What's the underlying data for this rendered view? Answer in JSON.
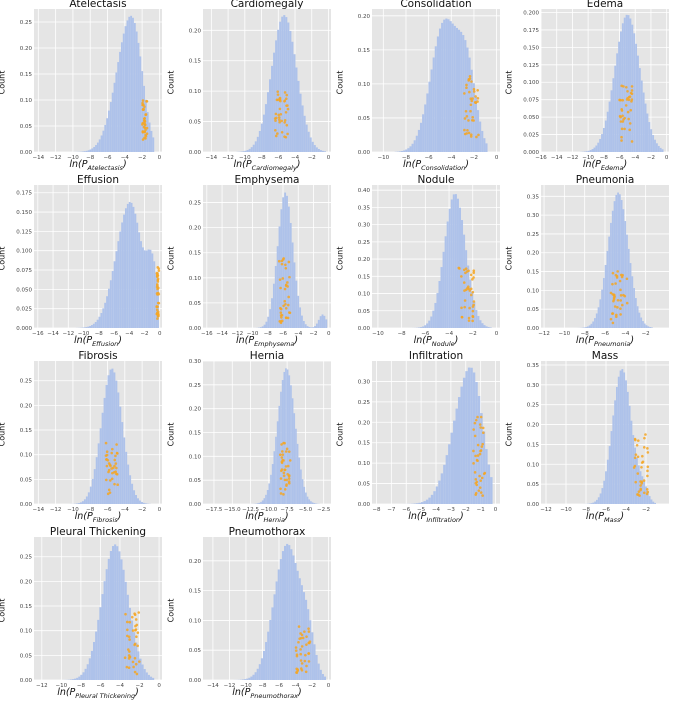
{
  "chart_data": [
    {
      "type": "histogram",
      "title": "Atelectasis",
      "xlabel_prefix": "ln(P",
      "xlabel_sub": "Atelectasis",
      "xlabel_suffix": ")",
      "ylabel": "Count",
      "xlim": [
        -14.5,
        0.3
      ],
      "ylim": [
        0,
        0.275
      ],
      "xticks": [
        -14,
        -12,
        -10,
        -8,
        -6,
        -4,
        -2,
        0
      ],
      "yticks": [
        0.0,
        0.05,
        0.1,
        0.15,
        0.2,
        0.25
      ],
      "ytick_labels": [
        "0.00",
        "0.05",
        "0.10",
        "0.15",
        "0.20",
        "0.25"
      ],
      "hist_mean": -3.3,
      "hist_sd": 1.45,
      "hist_peak": 0.262,
      "hist_skew": -0.6,
      "hist_range": [
        -10,
        -0.6
      ],
      "points_x": [
        -2.0,
        -1.4
      ],
      "points_y": [
        0.02,
        0.1
      ],
      "bar_color": "#aec2ea",
      "point_color": "#f5a623"
    },
    {
      "type": "histogram",
      "title": "Cardiomegaly",
      "xlabel_prefix": "ln(P",
      "xlabel_sub": "Cardiomegaly",
      "xlabel_suffix": ")",
      "ylabel": "Count",
      "xlim": [
        -15,
        0.3
      ],
      "ylim": [
        0,
        0.235
      ],
      "xticks": [
        -14,
        -12,
        -10,
        -8,
        -6,
        -4,
        -2,
        0
      ],
      "yticks": [
        0.0,
        0.05,
        0.1,
        0.15,
        0.2
      ],
      "ytick_labels": [
        "0.00",
        "0.05",
        "0.10",
        "0.15",
        "0.20"
      ],
      "hist_mean": -5.3,
      "hist_sd": 1.5,
      "hist_peak": 0.225,
      "hist_skew": 0,
      "hist_range": [
        -11,
        -0.3
      ],
      "points_x": [
        -6.4,
        -4.8
      ],
      "points_y": [
        0.02,
        0.1
      ],
      "bar_color": "#aec2ea",
      "point_color": "#f5a623"
    },
    {
      "type": "histogram",
      "title": "Consolidation",
      "xlabel_prefix": "ln(P",
      "xlabel_sub": "Consolidation",
      "xlabel_suffix": ")",
      "ylabel": "Count",
      "xlim": [
        -11,
        0.3
      ],
      "ylim": [
        0,
        0.21
      ],
      "xticks": [
        -10,
        -8,
        -6,
        -4,
        -2,
        0
      ],
      "yticks": [
        0.0,
        0.05,
        0.1,
        0.15,
        0.2
      ],
      "ytick_labels": [
        "0.00",
        "0.05",
        "0.10",
        "0.15",
        "0.20"
      ],
      "hist_mean": -4.6,
      "hist_sd": 1.2,
      "hist_peak": 0.19,
      "hist_skew": 0,
      "hist_range": [
        -9,
        -0.8
      ],
      "hist_shoulder": [
        -2.6,
        0.8,
        0.12
      ],
      "points_x": [
        -2.9,
        -1.6
      ],
      "points_y": [
        0.02,
        0.115
      ],
      "bar_color": "#aec2ea",
      "point_color": "#f5a623"
    },
    {
      "type": "histogram",
      "title": "Edema",
      "xlabel_prefix": "ln(P",
      "xlabel_sub": "Edema",
      "xlabel_suffix": ")",
      "ylabel": "Count",
      "xlim": [
        -16,
        0.3
      ],
      "ylim": [
        0,
        0.205
      ],
      "xticks": [
        -16,
        -14,
        -12,
        -10,
        -8,
        -6,
        -4,
        -2,
        0
      ],
      "yticks": [
        0.0,
        0.025,
        0.05,
        0.075,
        0.1,
        0.125,
        0.15,
        0.175,
        0.2
      ],
      "ytick_labels": [
        "0.000",
        "0.025",
        "0.050",
        "0.075",
        "0.100",
        "0.125",
        "0.150",
        "0.175",
        "0.200"
      ],
      "hist_mean": -5.0,
      "hist_sd": 1.6,
      "hist_peak": 0.197,
      "hist_skew": 0,
      "hist_range": [
        -11,
        -0.4
      ],
      "points_x": [
        -6.0,
        -4.4
      ],
      "points_y": [
        0.015,
        0.1
      ],
      "bar_color": "#aec2ea",
      "point_color": "#f5a623"
    },
    {
      "type": "histogram",
      "title": "Effusion",
      "xlabel_prefix": "ln(P",
      "xlabel_sub": "Effusion",
      "xlabel_suffix": ")",
      "ylabel": "Count",
      "xlim": [
        -16.5,
        0.3
      ],
      "ylim": [
        0,
        0.185
      ],
      "xticks": [
        -16,
        -14,
        -12,
        -10,
        -8,
        -6,
        -4,
        -2,
        0
      ],
      "yticks": [
        0.0,
        0.025,
        0.05,
        0.075,
        0.1,
        0.125,
        0.15,
        0.175
      ],
      "ytick_labels": [
        "0.000",
        "0.025",
        "0.050",
        "0.075",
        "0.100",
        "0.125",
        "0.150",
        "0.175"
      ],
      "hist_mean": -3.9,
      "hist_sd": 1.6,
      "hist_peak": 0.163,
      "hist_skew": -0.6,
      "hist_range": [
        -11,
        -0.1
      ],
      "hist_shoulder": [
        -1.0,
        0.8,
        0.09
      ],
      "points_x": [
        -0.4,
        -0.1
      ],
      "points_y": [
        0.01,
        0.08
      ],
      "bar_color": "#aec2ea",
      "point_color": "#f5a623"
    },
    {
      "type": "histogram",
      "title": "Emphysema",
      "xlabel_prefix": "ln(P",
      "xlabel_sub": "Emphysema",
      "xlabel_suffix": ")",
      "ylabel": "Count",
      "xlim": [
        -16.5,
        0.3
      ],
      "ylim": [
        0,
        0.285
      ],
      "xticks": [
        -16,
        -14,
        -12,
        -10,
        -8,
        -6,
        -4,
        -2,
        0
      ],
      "yticks": [
        0.0,
        0.05,
        0.1,
        0.15,
        0.2,
        0.25
      ],
      "ytick_labels": [
        "0.00",
        "0.05",
        "0.10",
        "0.15",
        "0.20",
        "0.25"
      ],
      "hist_mean": -5.7,
      "hist_sd": 1.0,
      "hist_peak": 0.27,
      "hist_skew": 0,
      "hist_range": [
        -11,
        -0.2
      ],
      "hist_shoulder": [
        -0.8,
        0.5,
        0.03
      ],
      "points_x": [
        -6.5,
        -5.0
      ],
      "points_y": [
        0.01,
        0.14
      ],
      "bar_color": "#aec2ea",
      "point_color": "#f5a623"
    },
    {
      "type": "histogram",
      "title": "Nodule",
      "xlabel_prefix": "ln(P",
      "xlabel_sub": "Nodule",
      "xlabel_suffix": ")",
      "ylabel": "Count",
      "xlim": [
        -10.5,
        0.3
      ],
      "ylim": [
        0,
        0.415
      ],
      "xticks": [
        -10,
        -8,
        -6,
        -4,
        -2,
        0
      ],
      "yticks": [
        0.0,
        0.05,
        0.1,
        0.15,
        0.2,
        0.25,
        0.3,
        0.35,
        0.4
      ],
      "ytick_labels": [
        "0.00",
        "0.05",
        "0.10",
        "0.15",
        "0.20",
        "0.25",
        "0.30",
        "0.35",
        "0.40"
      ],
      "hist_mean": -3.5,
      "hist_sd": 0.9,
      "hist_peak": 0.39,
      "hist_skew": 0,
      "hist_range": [
        -8,
        -0.4
      ],
      "points_x": [
        -3.2,
        -1.9
      ],
      "points_y": [
        0.02,
        0.18
      ],
      "bar_color": "#aec2ea",
      "point_color": "#f5a623"
    },
    {
      "type": "histogram",
      "title": "Pneumonia",
      "xlabel_prefix": "ln(P",
      "xlabel_sub": "Pneumonia",
      "xlabel_suffix": ")",
      "ylabel": "Count",
      "xlim": [
        -12.3,
        0.3
      ],
      "ylim": [
        0,
        0.38
      ],
      "xticks": [
        -12,
        -10,
        -8,
        -6,
        -4,
        -2
      ],
      "yticks": [
        0.0,
        0.05,
        0.1,
        0.15,
        0.2,
        0.25,
        0.3,
        0.35
      ],
      "ytick_labels": [
        "0.00",
        "0.05",
        "0.10",
        "0.15",
        "0.20",
        "0.25",
        "0.30",
        "0.35"
      ],
      "hist_mean": -4.7,
      "hist_sd": 1.0,
      "hist_peak": 0.36,
      "hist_skew": 0,
      "hist_range": [
        -9,
        -1.3
      ],
      "points_x": [
        -5.5,
        -3.8
      ],
      "points_y": [
        0.01,
        0.16
      ],
      "bar_color": "#aec2ea",
      "point_color": "#f5a623"
    },
    {
      "type": "histogram",
      "title": "Fibrosis",
      "xlabel_prefix": "ln(P",
      "xlabel_sub": "Fibrosis",
      "xlabel_suffix": ")",
      "ylabel": "Count",
      "xlim": [
        -14.5,
        0.3
      ],
      "ylim": [
        0,
        0.29
      ],
      "xticks": [
        -14,
        -12,
        -10,
        -8,
        -6,
        -4,
        -2,
        0
      ],
      "yticks": [
        0.0,
        0.05,
        0.1,
        0.15,
        0.2,
        0.25
      ],
      "ytick_labels": [
        "0.00",
        "0.05",
        "0.10",
        "0.15",
        "0.20",
        "0.25"
      ],
      "hist_mean": -5.5,
      "hist_sd": 1.2,
      "hist_peak": 0.275,
      "hist_skew": 0,
      "hist_range": [
        -11,
        -1
      ],
      "points_x": [
        -6.2,
        -4.8
      ],
      "points_y": [
        0.02,
        0.125
      ],
      "bar_color": "#aec2ea",
      "point_color": "#f5a623"
    },
    {
      "type": "histogram",
      "title": "Hernia",
      "xlabel_prefix": "ln(P",
      "xlabel_sub": "Hernia",
      "xlabel_suffix": ")",
      "ylabel": "Count",
      "xlim": [
        -19,
        -1.5
      ],
      "ylim": [
        0,
        0.3
      ],
      "xticks": [
        -17.5,
        -15.0,
        -12.5,
        -10.0,
        -7.5,
        -5.0,
        -2.5
      ],
      "xtick_labels": [
        "−17.5",
        "−15.0",
        "−12.5",
        "−10.0",
        "−7.5",
        "−5.0",
        "−2.5"
      ],
      "yticks": [
        0.0,
        0.05,
        0.1,
        0.15,
        0.2,
        0.25,
        0.3
      ],
      "ytick_labels": [
        "0.00",
        "0.05",
        "0.10",
        "0.15",
        "0.20",
        "0.25",
        "0.30"
      ],
      "hist_mean": -7.6,
      "hist_sd": 1.2,
      "hist_peak": 0.285,
      "hist_skew": 0,
      "hist_range": [
        -13,
        -3
      ],
      "points_x": [
        -8.5,
        -7.0
      ],
      "points_y": [
        0.02,
        0.13
      ],
      "bar_color": "#aec2ea",
      "point_color": "#f5a623"
    },
    {
      "type": "histogram",
      "title": "Infiltration",
      "xlabel_prefix": "ln(P",
      "xlabel_sub": "Infiltration",
      "xlabel_suffix": ")",
      "ylabel": "Count",
      "xlim": [
        -8.3,
        0.3
      ],
      "ylim": [
        0,
        0.35
      ],
      "xticks": [
        -8,
        -7,
        -6,
        -5,
        -4,
        -3,
        -2,
        -1,
        0
      ],
      "yticks": [
        0.0,
        0.05,
        0.1,
        0.15,
        0.2,
        0.25,
        0.3
      ],
      "ytick_labels": [
        "0.00",
        "0.05",
        "0.10",
        "0.15",
        "0.20",
        "0.25",
        "0.30"
      ],
      "hist_mean": -1.7,
      "hist_sd": 0.95,
      "hist_peak": 0.335,
      "hist_skew": -0.7,
      "hist_range": [
        -7.5,
        -0.2
      ],
      "points_x": [
        -1.5,
        -0.7
      ],
      "points_y": [
        0.02,
        0.22
      ],
      "bar_color": "#aec2ea",
      "point_color": "#f5a623"
    },
    {
      "type": "histogram",
      "title": "Mass",
      "xlabel_prefix": "ln(P",
      "xlabel_sub": "Mass",
      "xlabel_suffix": ")",
      "ylabel": "Count",
      "xlim": [
        -12.5,
        0.3
      ],
      "ylim": [
        0,
        0.36
      ],
      "xticks": [
        -12,
        -10,
        -8,
        -6,
        -4,
        -2
      ],
      "yticks": [
        0.0,
        0.05,
        0.1,
        0.15,
        0.2,
        0.25,
        0.3,
        0.35
      ],
      "ytick_labels": [
        "0.00",
        "0.05",
        "0.10",
        "0.15",
        "0.20",
        "0.25",
        "0.30",
        "0.35"
      ],
      "hist_mean": -4.4,
      "hist_sd": 0.95,
      "hist_peak": 0.34,
      "hist_skew": 0,
      "hist_range": [
        -9,
        -1
      ],
      "hist_shoulder": [
        -2.3,
        0.5,
        0.04
      ],
      "points_x": [
        -3.2,
        -1.8
      ],
      "points_y": [
        0.02,
        0.18
      ],
      "bar_color": "#aec2ea",
      "point_color": "#f5a623"
    },
    {
      "type": "histogram",
      "title": "Pleural Thickening",
      "xlabel_prefix": "ln(P",
      "xlabel_sub": "Pleural Thickening",
      "xlabel_suffix": ")",
      "ylabel": "Count",
      "xlim": [
        -12.8,
        0.3
      ],
      "ylim": [
        0,
        0.29
      ],
      "xticks": [
        -12,
        -10,
        -8,
        -6,
        -4,
        -2,
        0
      ],
      "yticks": [
        0.0,
        0.05,
        0.1,
        0.15,
        0.2,
        0.25
      ],
      "ytick_labels": [
        "0.00",
        "0.05",
        "0.10",
        "0.15",
        "0.20",
        "0.25"
      ],
      "hist_mean": -4.5,
      "hist_sd": 1.35,
      "hist_peak": 0.275,
      "hist_skew": 0,
      "hist_range": [
        -10,
        -0.5
      ],
      "points_x": [
        -3.5,
        -2.0
      ],
      "points_y": [
        0.01,
        0.14
      ],
      "bar_color": "#aec2ea",
      "point_color": "#f5a623"
    },
    {
      "type": "histogram",
      "title": "Pneumothorax",
      "xlabel_prefix": "ln(P",
      "xlabel_sub": "Pneumothorax",
      "xlabel_suffix": ")",
      "ylabel": "Count",
      "xlim": [
        -15.2,
        0.3
      ],
      "ylim": [
        0,
        0.24
      ],
      "xticks": [
        -14,
        -12,
        -10,
        -8,
        -6,
        -4,
        -2,
        0
      ],
      "yticks": [
        0.0,
        0.05,
        0.1,
        0.15,
        0.2
      ],
      "ytick_labels": [
        "0.00",
        "0.05",
        "0.10",
        "0.15",
        "0.20"
      ],
      "hist_mean": -5.0,
      "hist_sd": 1.6,
      "hist_peak": 0.228,
      "hist_skew": 0,
      "hist_range": [
        -11.5,
        -0.3
      ],
      "hist_shoulder": [
        -2.5,
        0.8,
        0.06
      ],
      "points_x": [
        -4.0,
        -2.2
      ],
      "points_y": [
        0.01,
        0.09
      ],
      "bar_color": "#aec2ea",
      "point_color": "#f5a623"
    }
  ]
}
